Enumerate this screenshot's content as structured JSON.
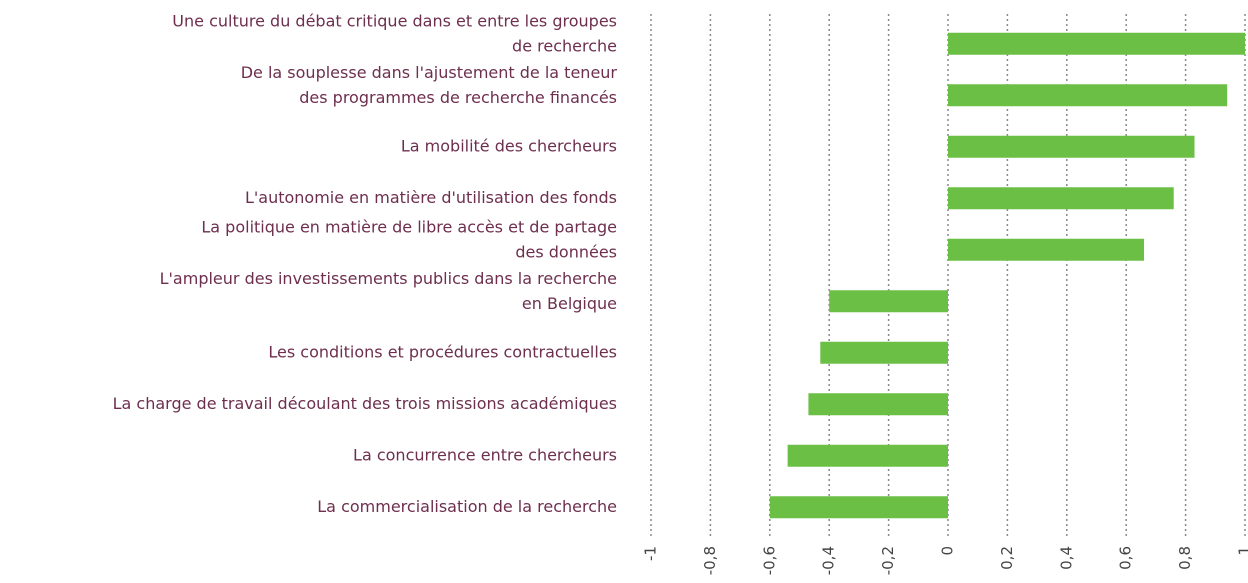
{
  "chart_data": {
    "type": "barh",
    "categories": [
      [
        "Une culture du débat critique dans et entre les groupes",
        "de recherche"
      ],
      [
        "De la souplesse dans l'ajustement de la teneur",
        "des programmes de recherche financés"
      ],
      [
        "La mobilité des chercheurs"
      ],
      [
        "L'autonomie en matière d'utilisation des fonds"
      ],
      [
        "La politique en matière de libre accès et de partage",
        "des données"
      ],
      [
        "L'ampleur des investissements publics dans la recherche",
        "en Belgique"
      ],
      [
        "Les conditions et procédures contractuelles"
      ],
      [
        "La charge de travail découlant des trois missions académiques"
      ],
      [
        "La concurrence entre chercheurs"
      ],
      [
        "La commercialisation de la recherche"
      ]
    ],
    "values": [
      1.0,
      0.94,
      0.83,
      0.76,
      0.66,
      -0.4,
      -0.43,
      -0.47,
      -0.54,
      -0.6
    ],
    "color": "#6cbf45",
    "xlim": [
      -1,
      1
    ],
    "xticks": [
      -1,
      {
        "value": -0.8,
        "label": "-0,8"
      },
      {
        "value": -0.6,
        "label": "-0,6"
      },
      {
        "value": -0.4,
        "label": "-0,4"
      },
      {
        "value": -0.2,
        "label": "-0,2"
      },
      0,
      {
        "value": 0.2,
        "label": "0,2"
      },
      {
        "value": 0.4,
        "label": "0,4"
      },
      {
        "value": 0.6,
        "label": "0,6"
      },
      {
        "value": 0.8,
        "label": "0,8"
      },
      1
    ],
    "grid": true
  }
}
